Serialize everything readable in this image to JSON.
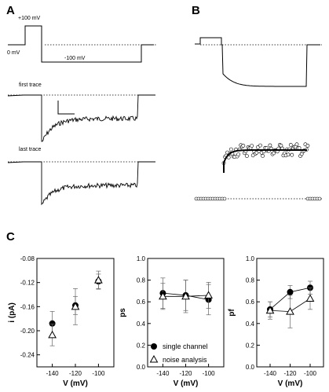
{
  "panels": {
    "a": "A",
    "b": "B",
    "c": "C"
  },
  "panel_a": {
    "labels": {
      "plus100": "+100 mV",
      "zero": "0 mV",
      "minus100": "-100 mV",
      "first_trace": "first trace",
      "last_trace": "last trace"
    }
  },
  "chart_data": [
    {
      "type": "scatter",
      "ylabel": "i (pA)",
      "xlabel": "V (mV)",
      "x_ticks": [
        "-140",
        "-120",
        "-100"
      ],
      "y_ticks": [
        "-0.08",
        "-0.12",
        "-0.16",
        "-0.20",
        "-0.24"
      ],
      "ylim": [
        -0.26,
        -0.08
      ],
      "series": [
        {
          "name": "single channel",
          "marker": "filled-circle",
          "x": [
            -140,
            -120,
            -100
          ],
          "y": [
            -0.188,
            -0.158,
            -0.118
          ],
          "err": [
            0.02,
            0.015,
            0.012
          ]
        },
        {
          "name": "noise analysis",
          "marker": "open-triangle",
          "x": [
            -140,
            -120,
            -100
          ],
          "y": [
            -0.207,
            -0.16,
            -0.116
          ],
          "err": [
            0.018,
            0.03,
            0.015
          ]
        }
      ]
    },
    {
      "type": "line",
      "ylabel": "ps",
      "xlabel": "V (mV)",
      "x_ticks": [
        "-140",
        "-120",
        "-100"
      ],
      "y_ticks": [
        "0.0",
        "0.2",
        "0.4",
        "0.6",
        "0.8",
        "1.0"
      ],
      "ylim": [
        0,
        1
      ],
      "series": [
        {
          "name": "single channel",
          "marker": "filled-circle",
          "x": [
            -140,
            -120,
            -100
          ],
          "y": [
            0.68,
            0.66,
            0.62
          ],
          "err": [
            0.14,
            0.14,
            0.14
          ]
        },
        {
          "name": "noise analysis",
          "marker": "open-triangle",
          "x": [
            -140,
            -120,
            -100
          ],
          "y": [
            0.65,
            0.65,
            0.66
          ],
          "err": [
            0.12,
            0.15,
            0.12
          ]
        }
      ],
      "legend": {
        "filled": "single channel",
        "open": "noise analysis"
      }
    },
    {
      "type": "line",
      "ylabel": "pf",
      "xlabel": "V (mV)",
      "x_ticks": [
        "-140",
        "-120",
        "-100"
      ],
      "y_ticks": [
        "0.0",
        "0.2",
        "0.4",
        "0.6",
        "0.8",
        "1.0"
      ],
      "ylim": [
        0,
        1
      ],
      "series": [
        {
          "name": "single channel",
          "marker": "filled-circle",
          "x": [
            -140,
            -120,
            -100
          ],
          "y": [
            0.53,
            0.69,
            0.73
          ],
          "err": [
            0.07,
            0.06,
            0.06
          ]
        },
        {
          "name": "noise analysis",
          "marker": "open-triangle",
          "x": [
            -140,
            -120,
            -100
          ],
          "y": [
            0.52,
            0.51,
            0.63
          ],
          "err": [
            0.08,
            0.15,
            0.1
          ]
        }
      ]
    }
  ]
}
